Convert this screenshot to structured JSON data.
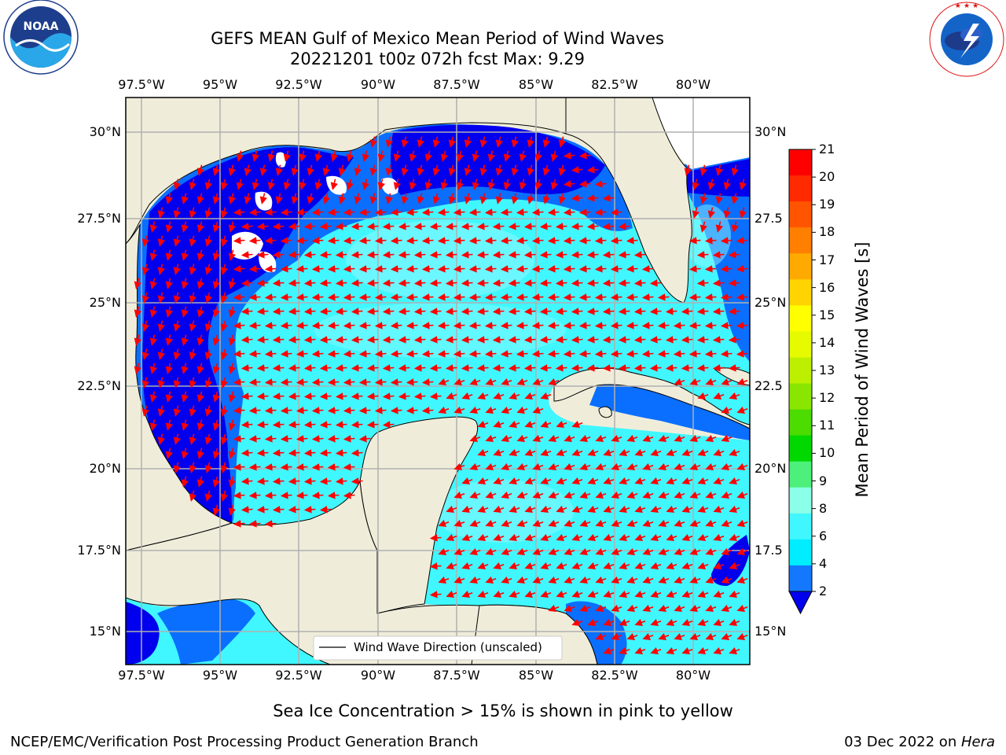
{
  "title": {
    "line1": "GEFS MEAN Gulf of Mexico Mean Period of Wind Waves",
    "line2": "20221201 t00z 072h fcst   Max: 9.29"
  },
  "map": {
    "lon_labels": [
      "97.5°W",
      "95°W",
      "92.5°W",
      "90°W",
      "87.5°W",
      "85°W",
      "82.5°W",
      "80°W"
    ],
    "lat_labels_left": [
      "30°N",
      "27.5°N",
      "25°N",
      "22.5°N",
      "20°N",
      "17.5°N",
      "15°N"
    ],
    "lat_labels_right": [
      "30°N",
      "27.5",
      "25°N",
      "22.5",
      "20°N",
      "17.5",
      "15°N"
    ],
    "legend_label": "Wind Wave Direction (unscaled)",
    "colors": {
      "land": "#efedda",
      "sea_dark_blue": "#0000ee",
      "sea_blue": "#0a6fff",
      "sea_aqua": "#1ee6ff",
      "sea_cyan": "#40f7ff",
      "sea_light": "#8cf8ff",
      "arrow": "#ff0000",
      "grid": "#b0b0b0"
    }
  },
  "colorbar": {
    "label": "Mean Period of Wind Waves [s]",
    "ticks": [
      "21",
      "20",
      "19",
      "18",
      "17",
      "16",
      "15",
      "14",
      "13",
      "12",
      "11",
      "10",
      "9",
      "8",
      "6",
      "4",
      "2"
    ],
    "colors": [
      "#ff0000",
      "#ff2a00",
      "#ff5500",
      "#ff7f00",
      "#ffaa00",
      "#ffd400",
      "#ffff00",
      "#e6fa00",
      "#bdf000",
      "#8ae600",
      "#4cdc00",
      "#00d800",
      "#4cf07a",
      "#8cffe8",
      "#40f7ff",
      "#00ecff",
      "#1478ff"
    ],
    "extend_color": "#0000ee"
  },
  "caption": "Sea Ice Concentration > 15% is shown in pink to yellow",
  "footer": {
    "left": "NCEP/EMC/Verification Post Processing Product Generation Branch",
    "right_date": "03 Dec 2022 on ",
    "right_host": "Hera"
  },
  "logos": {
    "noaa": "NOAA",
    "nws_ring": "NATIONAL WEATHER SERVICE",
    "noaa_ring": "NATIONAL OCEANIC AND ATMOSPHERIC ADMINISTRATION  U.S. DEPARTMENT OF COMMERCE"
  }
}
